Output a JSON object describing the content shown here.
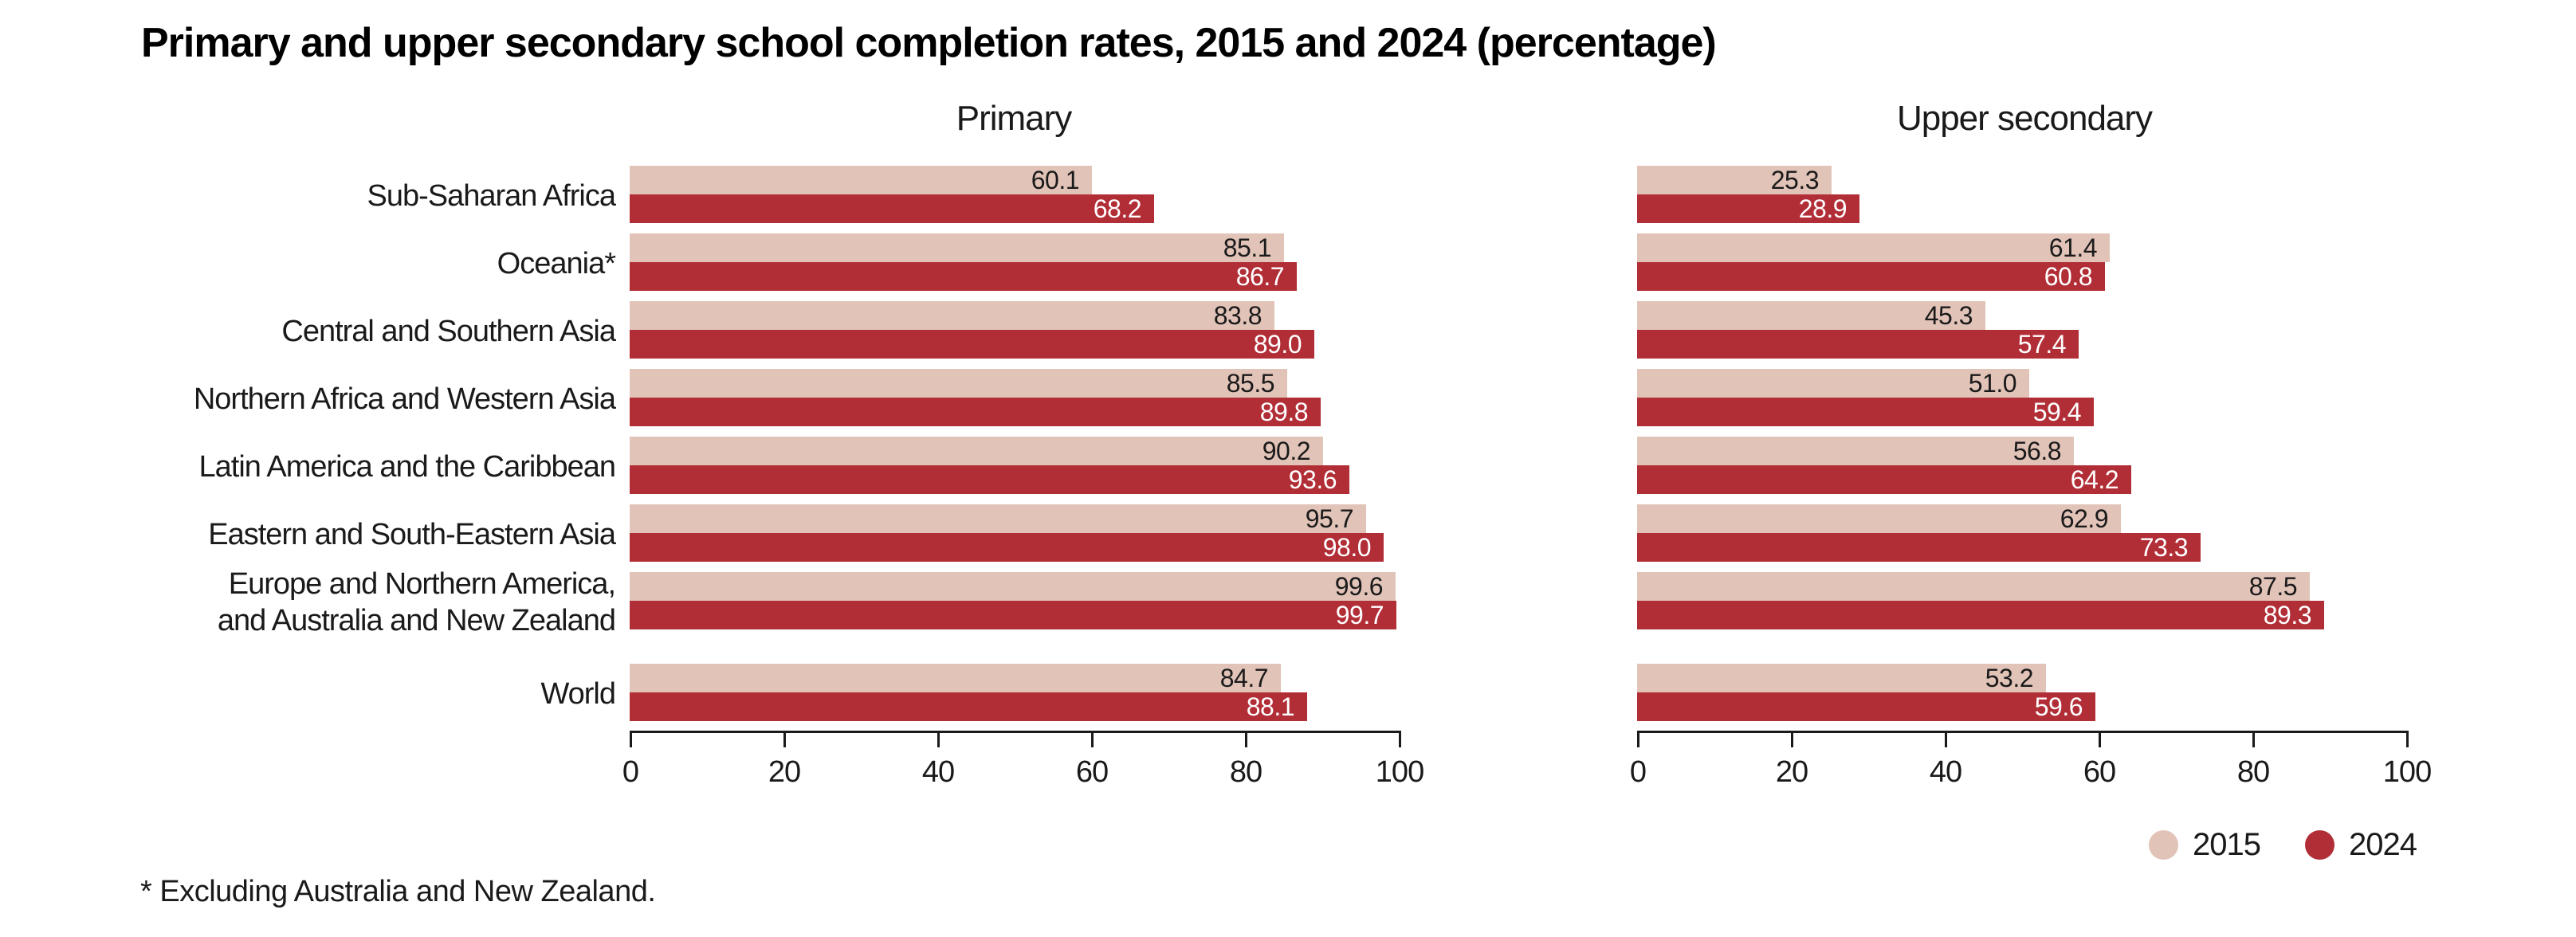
{
  "title": "Primary and upper secondary school completion rates, 2015 and 2024 (percentage)",
  "footnote": "* Excluding Australia and New Zealand.",
  "colors": {
    "series_2015": "#e1c3b8",
    "series_2024": "#b22e37",
    "value_label_on_2015": "#1a1a1a",
    "value_label_on_2024": "#ffffff",
    "axis": "#1a1a1a"
  },
  "legend": {
    "position": "bottom-right",
    "items": [
      {
        "label": "2015",
        "color": "#e1c3b8"
      },
      {
        "label": "2024",
        "color": "#b22e37"
      }
    ]
  },
  "chart_data": [
    {
      "type": "bar",
      "orientation": "horizontal",
      "title": "Primary",
      "categories": [
        "Sub-Saharan Africa",
        "Oceania*",
        "Central and Southern Asia",
        "Northern Africa and Western Asia",
        "Latin America and the Caribbean",
        "Eastern and South-Eastern Asia",
        "Europe and Northern America,\nand Australia and New Zealand",
        "World"
      ],
      "series": [
        {
          "name": "2015",
          "color": "#e1c3b8",
          "values": [
            60.1,
            85.1,
            83.8,
            85.5,
            90.2,
            95.7,
            99.6,
            84.7
          ]
        },
        {
          "name": "2024",
          "color": "#b22e37",
          "values": [
            68.2,
            86.7,
            89.0,
            89.8,
            93.6,
            98.0,
            99.7,
            88.1
          ]
        }
      ],
      "xlim": [
        0,
        100
      ],
      "xticks": [
        0,
        20,
        40,
        60,
        80,
        100
      ],
      "grid": false,
      "value_labels": "inside-end"
    },
    {
      "type": "bar",
      "orientation": "horizontal",
      "title": "Upper secondary",
      "categories": [
        "Sub-Saharan Africa",
        "Oceania*",
        "Central and Southern Asia",
        "Northern Africa and Western Asia",
        "Latin America and the Caribbean",
        "Eastern and South-Eastern Asia",
        "Europe and Northern America,\nand Australia and New Zealand",
        "World"
      ],
      "series": [
        {
          "name": "2015",
          "color": "#e1c3b8",
          "values": [
            25.3,
            61.4,
            45.3,
            51.0,
            56.8,
            62.9,
            87.5,
            53.2
          ]
        },
        {
          "name": "2024",
          "color": "#b22e37",
          "values": [
            28.9,
            60.8,
            57.4,
            59.4,
            64.2,
            73.3,
            89.3,
            59.6
          ]
        }
      ],
      "xlim": [
        0,
        100
      ],
      "xticks": [
        0,
        20,
        40,
        60,
        80,
        100
      ],
      "grid": false,
      "value_labels": "inside-end"
    }
  ]
}
